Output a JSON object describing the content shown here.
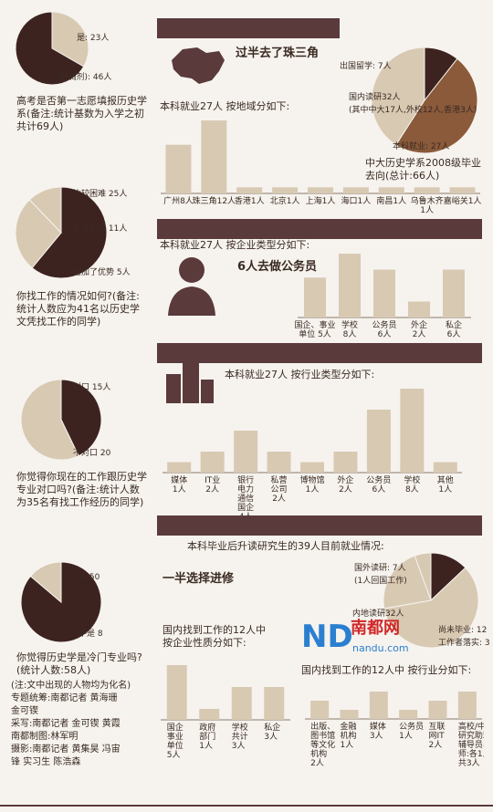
{
  "colors": {
    "dark": "#3d2320",
    "light": "#d8c9b3",
    "brown": "#8a5a3a",
    "band": "#5b3a3c"
  },
  "q1": {
    "text": "高考是否第一志愿填报历史学系(备注:统计基数为入学之初共计69人)",
    "labels": [
      "是: 23人",
      "否(调剂): 46人"
    ]
  },
  "q2": {
    "text": "你找工作的情况如何?(备注:统计人数应为41名以历史学文凭找工作的同学)",
    "labels": [
      "比较困难 25人",
      "不受影响 11人",
      "增加了优势 5人"
    ]
  },
  "q3": {
    "text": "你觉得你现在的工作跟历史学专业对口吗?(备注:统计人数为35名有找工作经历的同学)",
    "labels": [
      "对口 15人",
      "不对口 20"
    ]
  },
  "q4": {
    "text": "你觉得历史学是冷门专业吗?(统计人数:58人)",
    "labels": [
      "是 50",
      "不是 8"
    ]
  },
  "s1": {
    "headline": "过半去了珠三角",
    "subtitle": "本科就业27人 按地域分如下:",
    "pie_title": "中大历史学系2008级毕业去向(总计:66人)",
    "pie_labels": [
      "出国留学: 7人",
      "国内读研32人\n(其中中大17人,外校12人,香港3人)",
      "本科就业: 27人"
    ]
  },
  "s2": {
    "subtitle": "本科就业27人 按企业类型分如下:",
    "headline": "6人去做公务员"
  },
  "s3": {
    "subtitle": "本科就业27人 按行业类型分如下:"
  },
  "s4": {
    "subtitle": "本科毕业后升读研究生的39人目前就业情况:",
    "headline": "一半选择进修",
    "pie_labels": [
      "国外读研: 7人\n(1人回国工作)",
      "内地读研32人",
      "尚未毕业: 12\n工作者落实: 3"
    ],
    "left_sub": "国内找到工作的12人中\n按企业性质分如下:",
    "right_sub": "国内找到工作的12人中 按行业分如下:"
  },
  "logo": {
    "brand": "ND",
    "name": "南都网",
    "url": "nandu.com"
  },
  "credits": [
    "(注:文中出现的人物均为化名)",
    "专题统筹:南都记者 黄海珊",
    "金可锲",
    "采写:南都记者 金可锲 黄霞",
    "南都制图:林军明",
    "摄影:南都记者 黄集昊 冯宙",
    "锋 实习生 陈浩森"
  ],
  "chart_data": [
    {
      "type": "pie",
      "title": "",
      "categories": [
        "是",
        "否(调剂)"
      ],
      "values": [
        23,
        46
      ]
    },
    {
      "type": "pie",
      "title": "",
      "categories": [
        "比较困难",
        "不受影响",
        "增加了优势"
      ],
      "values": [
        25,
        11,
        5
      ]
    },
    {
      "type": "pie",
      "title": "",
      "categories": [
        "对口",
        "不对口"
      ],
      "values": [
        15,
        20
      ]
    },
    {
      "type": "pie",
      "title": "",
      "categories": [
        "是",
        "不是"
      ],
      "values": [
        50,
        8
      ]
    },
    {
      "type": "bar",
      "title": "",
      "categories": [
        "广州8人",
        "珠三角12人",
        "香港1人",
        "北京1人",
        "上海1人",
        "海口1人",
        "南昌1人",
        "乌鲁木齐\n1人",
        "嘉峪关1人"
      ],
      "values": [
        8,
        12,
        1,
        1,
        1,
        1,
        1,
        1,
        1
      ]
    },
    {
      "type": "pie",
      "title": "中大历史学系2008级毕业去向(总计:66人)",
      "categories": [
        "出国留学",
        "国内读研",
        "本科就业"
      ],
      "values": [
        7,
        32,
        27
      ]
    },
    {
      "type": "bar",
      "title": "",
      "categories": [
        "国企、事业\n单位 5人",
        "学校\n8人",
        "公务员\n6人",
        "外企\n2人",
        "私企\n6人"
      ],
      "values": [
        5,
        8,
        6,
        2,
        6
      ]
    },
    {
      "type": "bar",
      "title": "",
      "categories": [
        "媒体\n1人",
        "IT业\n2人",
        "银行\n电力\n通信\n国企\n4人",
        "私营\n公司\n2人",
        "博物馆\n1人",
        "外企\n2人",
        "公务员\n6人",
        "学校\n8人",
        "其他\n1人"
      ],
      "values": [
        1,
        2,
        4,
        2,
        1,
        2,
        6,
        8,
        1
      ]
    },
    {
      "type": "bar",
      "title": "",
      "categories": [
        "国企\n事业\n单位\n5人",
        "政府\n部门\n1人",
        "学校\n共计\n3人",
        "私企\n3人"
      ],
      "values": [
        5,
        1,
        3,
        3
      ]
    },
    {
      "type": "bar",
      "title": "",
      "categories": [
        "出版、\n图书馆\n等文化\n机构\n2人",
        "金融\n机构\n1人",
        "媒体\n3人",
        "公务员\n1人",
        "互联\n网IT\n2人",
        "高校/中学\n研究助理、\n辅导员、教\n师:各1人,\n共3人"
      ],
      "values": [
        2,
        1,
        3,
        1,
        2,
        3
      ]
    }
  ]
}
